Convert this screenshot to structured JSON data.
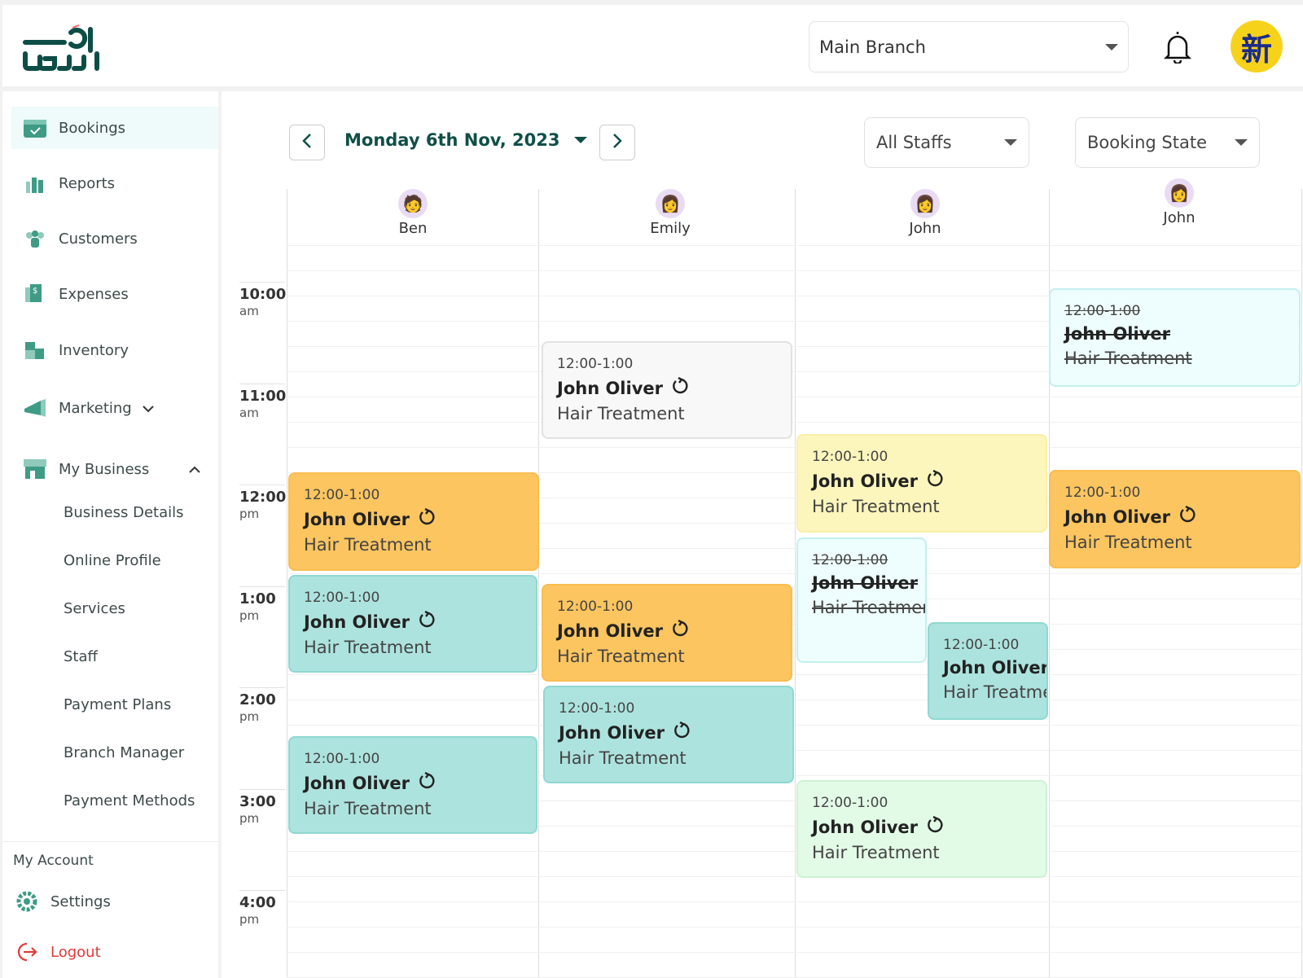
{
  "header": {
    "logo_text": "waj",
    "branch": "Main Branch",
    "avatar_glyph": "新"
  },
  "sidebar": {
    "items": [
      {
        "label": "Bookings",
        "icon": "calendar-check-icon",
        "active": true
      },
      {
        "label": "Reports",
        "icon": "bar-chart-icon"
      },
      {
        "label": "Customers",
        "icon": "users-icon"
      },
      {
        "label": "Expenses",
        "icon": "receipt-icon"
      },
      {
        "label": "Inventory",
        "icon": "boxes-icon"
      },
      {
        "label": "Marketing",
        "icon": "megaphone-icon",
        "chevron": "down"
      },
      {
        "label": "My Business",
        "icon": "store-icon",
        "chevron": "up"
      }
    ],
    "business_sub": [
      "Business Details",
      "Online Profile",
      "Services",
      "Staff",
      "Payment Plans",
      "Branch Manager",
      "Payment Methods"
    ],
    "account_heading": "My Account",
    "settings": "Settings",
    "logout": "Logout"
  },
  "toolbar": {
    "date": "Monday 6th Nov, 2023",
    "staff_filter": "All Staffs",
    "state_filter": "Booking State"
  },
  "staff": [
    {
      "name": "Ben"
    },
    {
      "name": "Emily"
    },
    {
      "name": "John"
    },
    {
      "name": "John"
    }
  ],
  "times": [
    {
      "h": "10:00",
      "p": "am"
    },
    {
      "h": "11:00",
      "p": "am"
    },
    {
      "h": "12:00",
      "p": "pm"
    },
    {
      "h": "1:00",
      "p": "pm"
    },
    {
      "h": "2:00",
      "p": "pm"
    },
    {
      "h": "3:00",
      "p": "pm"
    },
    {
      "h": "4:00",
      "p": "pm"
    }
  ],
  "events": [
    {
      "staff": "Ben",
      "time": "12:00-1:00",
      "customer": "John Oliver",
      "service": "Hair Treatment",
      "color": "#fcc55f",
      "recurring": true
    },
    {
      "staff": "Ben",
      "time": "12:00-1:00",
      "customer": "John Oliver",
      "service": "Hair Treatment",
      "color": "#ade3de",
      "recurring": true
    },
    {
      "staff": "Ben",
      "time": "12:00-1:00",
      "customer": "John Oliver",
      "service": "Hair Treatment",
      "color": "#ade3de",
      "recurring": true
    },
    {
      "staff": "Emily",
      "time": "12:00-1:00",
      "customer": "John Oliver",
      "service": "Hair Treatment",
      "color": "#f8f8f8",
      "recurring": true
    },
    {
      "staff": "Emily",
      "time": "12:00-1:00",
      "customer": "John Oliver",
      "service": "Hair Treatment",
      "color": "#fcc55f",
      "recurring": true
    },
    {
      "staff": "Emily",
      "time": "12:00-1:00",
      "customer": "John Oliver",
      "service": "Hair Treatment",
      "color": "#ade3de",
      "recurring": true
    },
    {
      "staff": "John",
      "time": "12:00-1:00",
      "customer": "John Oliver",
      "service": "Hair Treatment",
      "color": "#fdf6bc",
      "recurring": true
    },
    {
      "staff": "John",
      "time": "12:00-1:00",
      "customer": "John Oliver",
      "service": "Hair Treatment",
      "color": "#eefdfd",
      "cancelled": true
    },
    {
      "staff": "John",
      "time": "12:00-1:00",
      "customer": "John Oliver",
      "service": "Hair Treatment",
      "color": "#ade3de"
    },
    {
      "staff": "John",
      "time": "12:00-1:00",
      "customer": "John Oliver",
      "service": "Hair Treatment",
      "color": "#e2fbe6",
      "recurring": true
    },
    {
      "staff": "John",
      "time": "12:00-1:00",
      "customer": "John Oliver",
      "service": "Hair Treatment",
      "color": "#eefdfd",
      "cancelled": true
    },
    {
      "staff": "John",
      "time": "12:00-1:00",
      "customer": "John Oliver",
      "service": "Hair Treatment",
      "color": "#fcc55f",
      "recurring": true
    }
  ]
}
